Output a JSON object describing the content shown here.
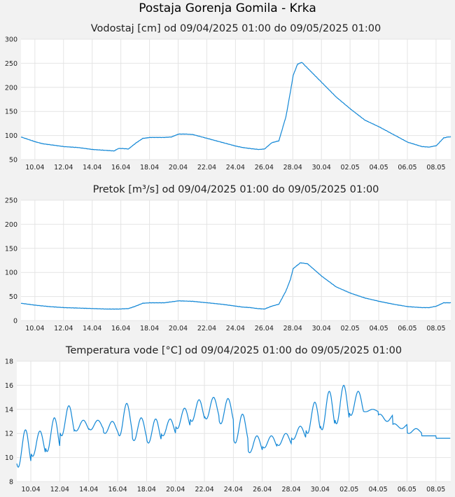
{
  "page": {
    "title": "Postaja Gorenja Gomila - Krka"
  },
  "colors": {
    "line": "#1287d6",
    "plot_bg": "#ffffff",
    "grid": "#e4e4e4",
    "page_bg": "#f2f2f2"
  },
  "chart_data": [
    {
      "type": "line",
      "title": "Vodostaj [cm] od 09/04/2025 01:00 do 09/05/2025 01:00",
      "xlabel": "",
      "ylabel": "",
      "ylim": [
        50,
        300
      ],
      "yticks": [
        50,
        100,
        150,
        200,
        250,
        300
      ],
      "xticks": [
        "10.04",
        "12.04",
        "14.04",
        "16.04",
        "18.04",
        "20.04",
        "22.04",
        "24.04",
        "26.04",
        "28.04",
        "30.04",
        "02.05",
        "04.05",
        "06.05",
        "08.05"
      ],
      "grid": true,
      "series": [
        {
          "x": [
            0,
            0.5,
            1,
            1.5,
            2,
            2.5,
            3,
            3.5,
            4,
            4.5,
            5,
            5.5,
            6,
            6.5,
            6.8,
            7.1,
            7.5,
            8,
            8.5,
            9,
            9.5,
            10,
            10.5,
            11,
            11.5,
            12,
            12.5,
            13,
            13.5,
            14,
            14.5,
            15,
            15.5,
            16,
            16.3,
            16.6,
            17,
            17.5,
            18,
            18.5,
            18.8,
            19,
            19.3,
            19.6,
            20,
            21,
            22,
            23,
            24,
            25,
            26,
            27,
            28,
            28.5,
            29,
            29.5,
            29.8,
            30
          ],
          "y": [
            97,
            92,
            87,
            83,
            81,
            79,
            77,
            76,
            75,
            73,
            71,
            70,
            69,
            68,
            73,
            73,
            72,
            84,
            94,
            96,
            96,
            96,
            97,
            103,
            103,
            102,
            98,
            94,
            90,
            86,
            82,
            78,
            75,
            73,
            72,
            71,
            72,
            85,
            89,
            140,
            190,
            225,
            248,
            252,
            240,
            210,
            180,
            155,
            132,
            118,
            102,
            86,
            77,
            76,
            79,
            95,
            97,
            97
          ]
        }
      ]
    },
    {
      "type": "line",
      "title": "Pretok [m³/s] od 09/04/2025 01:00 do 09/05/2025 01:00",
      "xlabel": "",
      "ylabel": "",
      "ylim": [
        0,
        250
      ],
      "yticks": [
        0,
        50,
        100,
        150,
        200,
        250
      ],
      "xticks": [
        "10.04",
        "12.04",
        "14.04",
        "16.04",
        "18.04",
        "20.04",
        "22.04",
        "24.04",
        "26.04",
        "28.04",
        "30.04",
        "02.05",
        "04.05",
        "06.05",
        "08.05"
      ],
      "grid": true,
      "series": [
        {
          "x": [
            0,
            1,
            2,
            3,
            4,
            5,
            6,
            6.8,
            7.5,
            8,
            8.5,
            9,
            10,
            11,
            12,
            13,
            14,
            15,
            15.5,
            16,
            16.5,
            17,
            17.5,
            18,
            18.5,
            18.8,
            19,
            19.5,
            20,
            21,
            22,
            23,
            24,
            25,
            26,
            27,
            28,
            28.5,
            29,
            29.5,
            30
          ],
          "y": [
            36,
            32,
            29,
            27,
            26,
            25,
            24,
            24,
            25,
            30,
            36,
            37,
            37,
            41,
            40,
            37,
            34,
            30,
            28,
            27,
            25,
            24,
            30,
            34,
            62,
            85,
            108,
            120,
            118,
            92,
            70,
            57,
            47,
            40,
            34,
            29,
            27,
            27,
            30,
            37,
            37
          ]
        }
      ]
    },
    {
      "type": "line",
      "title": "Temperatura vode [°C] od 09/04/2025 01:00 do 09/05/2025 01:00",
      "xlabel": "",
      "ylabel": "",
      "ylim": [
        8,
        18
      ],
      "yticks": [
        8,
        10,
        12,
        14,
        16,
        18
      ],
      "xticks": [
        "10.04",
        "12.04",
        "14.04",
        "16.04",
        "18.04",
        "20.04",
        "22.04",
        "24.04",
        "26.04",
        "28.04",
        "30.04",
        "02.05",
        "04.05",
        "06.05",
        "08.05"
      ],
      "grid": true,
      "series": [
        {
          "daily_min": [
            9.2,
            10.1,
            10.5,
            11.8,
            12.2,
            12.3,
            12.0,
            11.8,
            11.4,
            11.2,
            11.8,
            12.4,
            13.0,
            13.2,
            12.8,
            11.2,
            10.4,
            10.8,
            11.0,
            11.5,
            12.0,
            12.3,
            12.8,
            13.5,
            13.8,
            13.6,
            12.8,
            12.0,
            11.8,
            11.6
          ],
          "daily_max": [
            12.3,
            12.2,
            13.3,
            14.3,
            13.1,
            13.1,
            13.0,
            14.5,
            13.3,
            13.2,
            13.2,
            14.1,
            14.8,
            15.0,
            14.9,
            13.6,
            11.8,
            11.8,
            12.0,
            12.6,
            14.6,
            15.5,
            16.0,
            15.5,
            14.0,
            13.0,
            12.4,
            12.4,
            11.8,
            11.6
          ]
        }
      ]
    }
  ]
}
